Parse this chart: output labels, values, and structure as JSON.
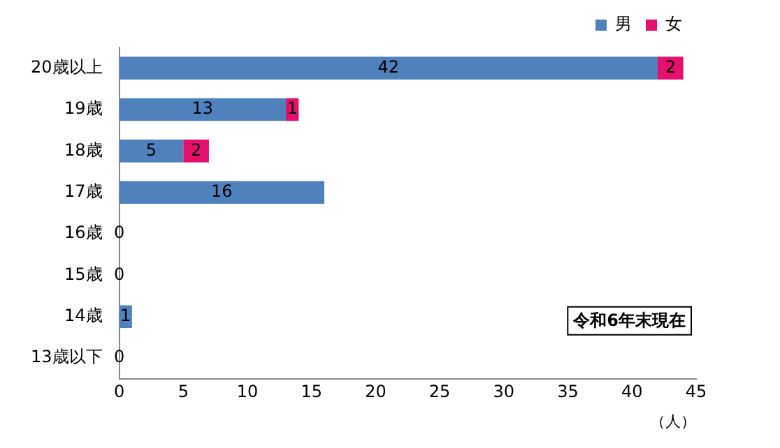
{
  "chart_data": {
    "type": "bar",
    "orientation": "horizontal",
    "stacked": true,
    "categories": [
      "20歳以上",
      "19歳",
      "18歳",
      "17歳",
      "16歳",
      "15歳",
      "14歳",
      "13歳以下"
    ],
    "series": [
      {
        "name": "男",
        "color": "#4f81bd",
        "values": [
          42,
          13,
          5,
          16,
          0,
          0,
          1,
          0
        ],
        "value_labels": [
          "42",
          "13",
          "5",
          "16",
          "0",
          "0",
          "1",
          "0"
        ]
      },
      {
        "name": "女",
        "color": "#e5106d",
        "values": [
          2,
          1,
          2,
          0,
          0,
          0,
          0,
          0
        ],
        "value_labels": [
          "2",
          "1",
          "2",
          null,
          null,
          null,
          null,
          null
        ]
      }
    ],
    "xlim": [
      0,
      45
    ],
    "xticks": [
      0,
      5,
      10,
      15,
      20,
      25,
      30,
      35,
      40,
      45
    ],
    "xlabel": "（人）",
    "grid": false,
    "legend": "top right",
    "annotations": [
      "令和6年末現在"
    ]
  }
}
